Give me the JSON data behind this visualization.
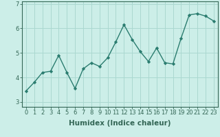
{
  "x": [
    0,
    1,
    2,
    3,
    4,
    5,
    6,
    7,
    8,
    9,
    10,
    11,
    12,
    13,
    14,
    15,
    16,
    17,
    18,
    19,
    20,
    21,
    22,
    23
  ],
  "y": [
    3.45,
    3.8,
    4.2,
    4.25,
    4.9,
    4.2,
    3.55,
    4.35,
    4.6,
    4.45,
    4.8,
    5.45,
    6.15,
    5.55,
    5.05,
    4.65,
    5.2,
    4.6,
    4.55,
    5.6,
    6.55,
    6.6,
    6.5,
    6.3
  ],
  "line_color": "#2a7c6f",
  "marker": "D",
  "markersize": 2.2,
  "linewidth": 1.0,
  "bg_color": "#cceee8",
  "grid_color": "#aad8d0",
  "xlabel": "Humidex (Indice chaleur)",
  "xlabel_fontsize": 7.5,
  "ylim": [
    2.8,
    7.1
  ],
  "xlim": [
    -0.5,
    23.5
  ],
  "yticks": [
    3,
    4,
    5,
    6,
    7
  ],
  "xticks": [
    0,
    1,
    2,
    3,
    4,
    5,
    6,
    7,
    8,
    9,
    10,
    11,
    12,
    13,
    14,
    15,
    16,
    17,
    18,
    19,
    20,
    21,
    22,
    23
  ],
  "tick_fontsize": 6.0,
  "axis_color": "#336655"
}
